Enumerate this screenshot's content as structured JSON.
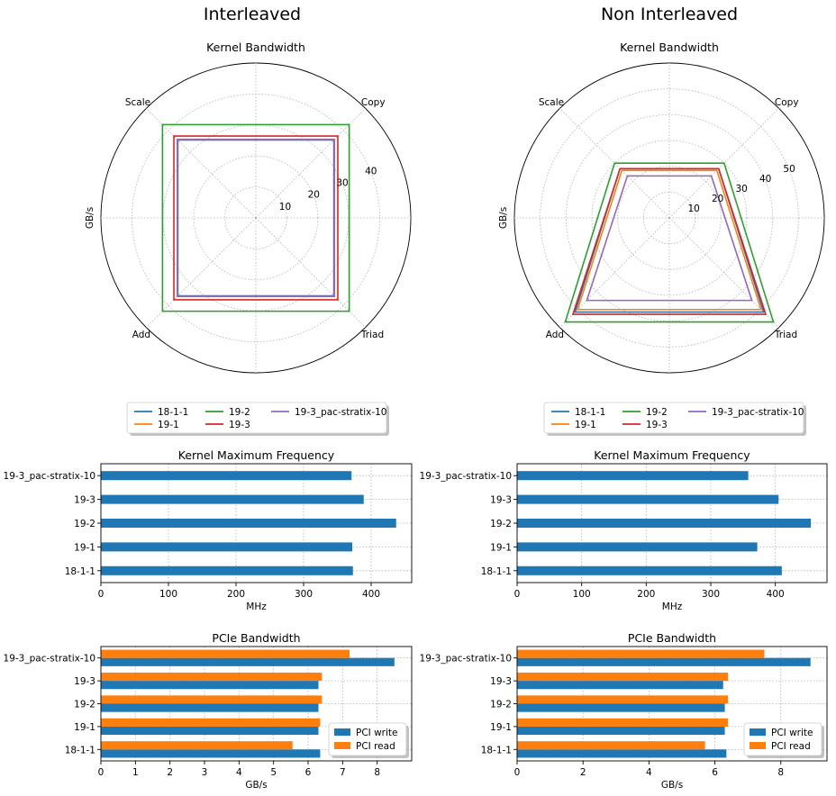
{
  "figure": {
    "suptitles": [
      "Interleaved",
      "Non Interleaved"
    ]
  },
  "colors": {
    "18-1-1": "#1f77b4",
    "19-1": "#ff7f0e",
    "19-2": "#2ca02c",
    "19-3": "#d62728",
    "19-3_pac-stratix-10": "#9467bd",
    "pci_write": "#1f77b4",
    "pci_read": "#ff7f0e"
  },
  "chart_data": [
    {
      "type": "radar",
      "panel": "Interleaved",
      "title": "Kernel Bandwidth",
      "ylabel": "GB/s",
      "axes": [
        "Copy",
        "Scale",
        "Add",
        "Triad"
      ],
      "rticks": [
        10,
        20,
        30,
        40
      ],
      "rlim": [
        0,
        50
      ],
      "grid": true,
      "legend_position": "below",
      "series": [
        {
          "name": "18-1-1",
          "values": [
            35.6,
            35.6,
            35.6,
            35.6
          ]
        },
        {
          "name": "19-1",
          "values": [
            35.9,
            35.9,
            35.9,
            35.9
          ]
        },
        {
          "name": "19-2",
          "values": [
            42.6,
            42.6,
            42.6,
            42.6
          ]
        },
        {
          "name": "19-3",
          "values": [
            37.4,
            37.4,
            37.4,
            37.4
          ]
        },
        {
          "name": "19-3_pac-stratix-10",
          "values": [
            35.8,
            35.8,
            35.8,
            35.8
          ]
        }
      ]
    },
    {
      "type": "radar",
      "panel": "Non Interleaved",
      "title": "Kernel Bandwidth",
      "ylabel": "GB/s",
      "axes": [
        "Copy",
        "Scale",
        "Add",
        "Triad"
      ],
      "rticks": [
        10,
        20,
        30,
        40,
        50
      ],
      "rlim": [
        0,
        60
      ],
      "grid": true,
      "legend_position": "below",
      "series": [
        {
          "name": "18-1-1",
          "values": [
            27.0,
            27.0,
            51.6,
            51.6
          ]
        },
        {
          "name": "19-1",
          "values": [
            26.0,
            26.0,
            50.2,
            50.2
          ]
        },
        {
          "name": "19-2",
          "values": [
            30.0,
            30.0,
            57.0,
            57.0
          ]
        },
        {
          "name": "19-3",
          "values": [
            27.0,
            27.0,
            52.8,
            52.8
          ]
        },
        {
          "name": "19-3_pac-stratix-10",
          "values": [
            23.0,
            23.0,
            45.2,
            45.2
          ]
        }
      ]
    },
    {
      "type": "bar",
      "orientation": "horizontal",
      "panel": "Interleaved",
      "title": "Kernel Maximum Frequency",
      "xlabel": "MHz",
      "categories": [
        "18-1-1",
        "19-1",
        "19-2",
        "19-3",
        "19-3_pac-stratix-10"
      ],
      "values": [
        373,
        372,
        437,
        389,
        371
      ],
      "xlim": [
        0,
        460
      ],
      "xticks": [
        0,
        100,
        200,
        300,
        400
      ],
      "grid": true
    },
    {
      "type": "bar",
      "orientation": "horizontal",
      "panel": "Non Interleaved",
      "title": "Kernel Maximum Frequency",
      "xlabel": "MHz",
      "categories": [
        "18-1-1",
        "19-1",
        "19-2",
        "19-3",
        "19-3_pac-stratix-10"
      ],
      "values": [
        410,
        372,
        455,
        405,
        358
      ],
      "xlim": [
        0,
        480
      ],
      "xticks": [
        0,
        100,
        200,
        300,
        400
      ],
      "grid": true
    },
    {
      "type": "bar",
      "orientation": "horizontal",
      "panel": "Interleaved",
      "title": "PCIe Bandwidth",
      "xlabel": "GB/s",
      "categories": [
        "18-1-1",
        "19-1",
        "19-2",
        "19-3",
        "19-3_pac-stratix-10"
      ],
      "series": [
        {
          "name": "PCI write",
          "values": [
            6.35,
            6.3,
            6.3,
            6.3,
            8.5
          ]
        },
        {
          "name": "PCI read",
          "values": [
            5.55,
            6.35,
            6.4,
            6.4,
            7.2
          ]
        }
      ],
      "xlim": [
        0,
        9
      ],
      "xticks": [
        0,
        1,
        2,
        3,
        4,
        5,
        6,
        7,
        8
      ],
      "grid": true,
      "legend_position": "lower right"
    },
    {
      "type": "bar",
      "orientation": "horizontal",
      "panel": "Non Interleaved",
      "title": "PCIe Bandwidth",
      "xlabel": "GB/s",
      "categories": [
        "18-1-1",
        "19-1",
        "19-2",
        "19-3",
        "19-3_pac-stratix-10"
      ],
      "series": [
        {
          "name": "PCI write",
          "values": [
            6.35,
            6.3,
            6.3,
            6.25,
            8.9
          ]
        },
        {
          "name": "PCI read",
          "values": [
            5.7,
            6.4,
            6.4,
            6.4,
            7.5
          ]
        }
      ],
      "xlim": [
        0,
        9.4
      ],
      "xticks": [
        0,
        2,
        4,
        6,
        8
      ],
      "grid": true,
      "legend_position": "lower right"
    }
  ]
}
